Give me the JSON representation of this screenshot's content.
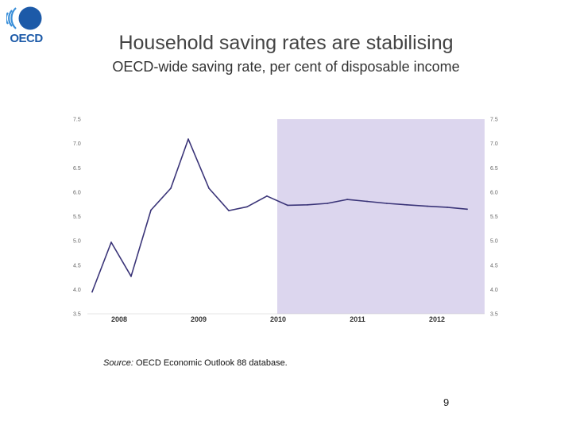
{
  "logo": {
    "text": "OECD",
    "icon": "oecd-logo-icon",
    "colors": [
      "#1c5aa8",
      "#3a8fd9"
    ]
  },
  "header": {
    "title": "Household saving rates are stabilising",
    "subtitle": "OECD-wide saving rate, per cent of disposable income"
  },
  "chart_data": {
    "type": "line",
    "title": "",
    "xlabel": "",
    "ylabel": "",
    "ylim": [
      3.5,
      7.5
    ],
    "xlim": [
      2007.6,
      2012.6
    ],
    "yticks": [
      "3.5",
      "4.0",
      "4.5",
      "5.0",
      "5.5",
      "6.0",
      "6.5",
      "7.0",
      "7.5"
    ],
    "yticks_right": [
      "3.5",
      "4.0",
      "4.5",
      "5.0",
      "5.5",
      "6.0",
      "6.5",
      "7.0",
      "7.5"
    ],
    "xticks": [
      {
        "label": "2008",
        "value": 2008
      },
      {
        "label": "2009",
        "value": 2009
      },
      {
        "label": "2010",
        "value": 2010
      },
      {
        "label": "2011",
        "value": 2011
      },
      {
        "label": "2012",
        "value": 2012
      }
    ],
    "projection_start": 2009.99,
    "projection_color": "#dcd6ee",
    "line_color": "#3a3478",
    "grid": false,
    "legend": "none",
    "series": [
      {
        "x": [
          2007.66,
          2007.9,
          2008.15,
          2008.4,
          2008.65,
          2008.87,
          2009.13,
          2009.38,
          2009.61,
          2009.86,
          2010.12,
          2010.37,
          2010.62,
          2010.87,
          2011.12,
          2011.37,
          2011.62,
          2011.88,
          2012.13,
          2012.38
        ],
        "y": [
          3.95,
          4.97,
          4.27,
          5.63,
          6.08,
          7.09,
          6.08,
          5.62,
          5.7,
          5.92,
          5.73,
          5.74,
          5.77,
          5.85,
          5.81,
          5.77,
          5.74,
          5.71,
          5.69,
          5.65
        ]
      }
    ]
  },
  "footer": {
    "source_label": "Source:",
    "source_text": " OECD Economic Outlook 88 database.",
    "page_number": "9"
  }
}
